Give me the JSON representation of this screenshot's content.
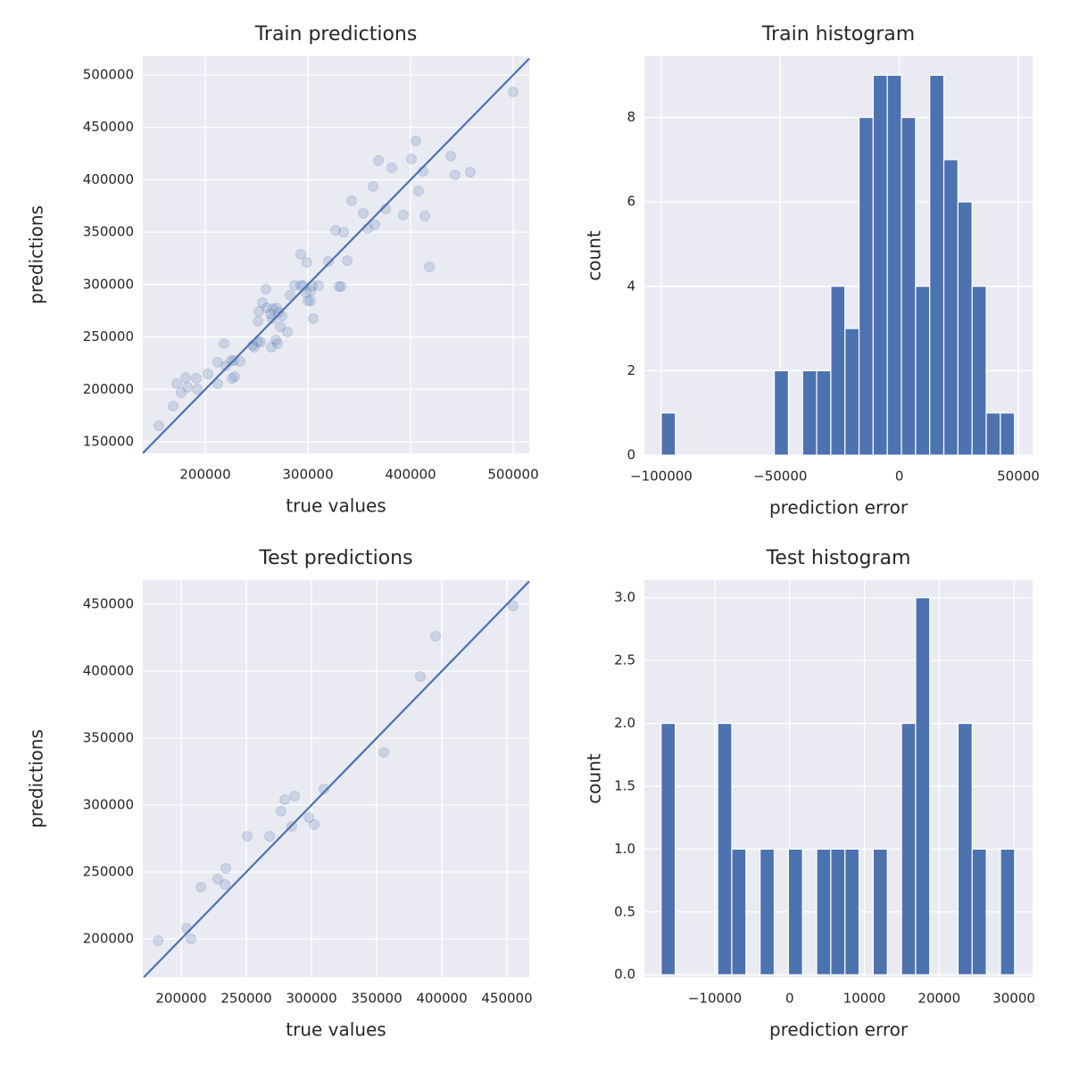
{
  "chart_data": [
    {
      "type": "scatter",
      "title": "Train predictions",
      "xlabel": "true values",
      "ylabel": "predictions",
      "color": "#4c72b0",
      "alpha": 0.2,
      "identity_line": true,
      "grid": true,
      "x": [
        154800,
        168700,
        172200,
        176500,
        180900,
        182600,
        191300,
        192200,
        202600,
        212200,
        212200,
        218300,
        220000,
        225200,
        227800,
        226100,
        228700,
        233900,
        246100,
        247800,
        251300,
        253900,
        251300,
        252200,
        255700,
        259100,
        260000,
        263500,
        264300,
        266100,
        265200,
        268700,
        269600,
        271300,
        270400,
        274800,
        273000,
        280000,
        282600,
        287000,
        293000,
        293000,
        295700,
        298300,
        299100,
        300000,
        302600,
        302600,
        304300,
        305200,
        310400,
        320000,
        327000,
        330400,
        332200,
        334800,
        338300,
        342600,
        353900,
        358300,
        363500,
        365200,
        368700,
        375700,
        381700,
        393000,
        400900,
        405200,
        407800,
        412200,
        413900,
        418300,
        439100,
        443500,
        458300,
        500000
      ],
      "y": [
        165300,
        184100,
        205400,
        196800,
        211300,
        202000,
        210500,
        200200,
        214700,
        225800,
        205400,
        243700,
        222400,
        227500,
        227500,
        210500,
        212200,
        226600,
        242000,
        240300,
        245400,
        245400,
        265000,
        274300,
        282800,
        295600,
        277700,
        271800,
        240300,
        276900,
        267500,
        247100,
        277700,
        273500,
        243700,
        270100,
        259900,
        254700,
        289700,
        299000,
        328800,
        299000,
        299000,
        292200,
        321200,
        284500,
        293900,
        284500,
        299000,
        267500,
        299000,
        322000,
        351800,
        298200,
        298200,
        350100,
        322900,
        379900,
        368000,
        353500,
        393600,
        356900,
        418200,
        372300,
        411400,
        366300,
        419900,
        437000,
        389300,
        408000,
        365400,
        316900,
        422500,
        404600,
        407200,
        483800
      ],
      "xlim": [
        139130,
        515650
      ],
      "ylim": [
        138930,
        517880
      ],
      "xticks": [
        200000,
        300000,
        400000,
        500000
      ],
      "yticks": [
        150000,
        200000,
        250000,
        300000,
        350000,
        400000,
        450000,
        500000
      ]
    },
    {
      "type": "histogram",
      "title": "Train histogram",
      "xlabel": "prediction error",
      "ylabel": "count",
      "color": "#4c72b0",
      "grid": true,
      "bins": [
        -100000,
        -94065,
        -88130,
        -82195,
        -76260,
        -70325,
        -64390,
        -58455,
        -52520,
        -46585,
        -40650,
        -34715,
        -28780,
        -22845,
        -16910,
        -10975,
        -5040,
        895,
        6830,
        12765,
        18700,
        24635,
        30570,
        36505,
        42440,
        48375
      ],
      "values": [
        1,
        0,
        0,
        0,
        0,
        0,
        0,
        0,
        2,
        0,
        2,
        2,
        4,
        3,
        8,
        9,
        9,
        8,
        4,
        9,
        7,
        6,
        4,
        1,
        1
      ],
      "xlim": [
        -107100,
        56000
      ],
      "ylim": [
        0,
        9.45
      ],
      "xticks": [
        {
          "value": -100000,
          "label": "−100000"
        },
        {
          "value": -50000,
          "label": "−50000"
        },
        0,
        50000
      ],
      "yticks": [
        0,
        2,
        4,
        6,
        8
      ]
    },
    {
      "type": "scatter",
      "title": "Test predictions",
      "xlabel": "true values",
      "ylabel": "predictions",
      "color": "#4c72b0",
      "alpha": 0.2,
      "identity_line": true,
      "grid": true,
      "x": [
        182300,
        204100,
        207500,
        215100,
        228100,
        234200,
        233600,
        250700,
        267800,
        276700,
        279500,
        284900,
        287000,
        298000,
        302100,
        309600,
        355500,
        383600,
        395200,
        454800
      ],
      "y": [
        198700,
        208000,
        200000,
        238700,
        244700,
        252700,
        240700,
        276700,
        276700,
        295300,
        304000,
        284000,
        306700,
        290700,
        285300,
        312000,
        339300,
        396000,
        426000,
        448700
      ],
      "xlim": [
        170550,
        467120
      ],
      "ylim": [
        171330,
        468000
      ],
      "xticks": [
        200000,
        250000,
        300000,
        350000,
        400000,
        450000
      ],
      "yticks": [
        200000,
        250000,
        300000,
        350000,
        400000,
        450000
      ]
    },
    {
      "type": "histogram",
      "title": "Test histogram",
      "xlabel": "prediction error",
      "ylabel": "count",
      "color": "#4c72b0",
      "grid": true,
      "bins": [
        -17190,
        -15299,
        -13408,
        -11516,
        -9625,
        -7734,
        -5843,
        -3952,
        -2060,
        -169,
        1722,
        3613,
        5504,
        7396,
        9287,
        11178,
        13069,
        14960,
        16852,
        18743,
        20634,
        22525,
        24416,
        26308,
        28199,
        30090
      ],
      "values": [
        2,
        0,
        0,
        0,
        2,
        1,
        0,
        1,
        0,
        1,
        0,
        1,
        1,
        1,
        0,
        1,
        0,
        2,
        3,
        0,
        0,
        2,
        1,
        0,
        1
      ],
      "xlim": [
        -19430,
        32500
      ],
      "ylim": [
        -0.02,
        3.14
      ],
      "xticks": [
        {
          "value": -10000,
          "label": "−10000"
        },
        0,
        10000,
        20000,
        30000
      ],
      "yticks": [
        {
          "value": 0,
          "label": "0.0"
        },
        0.5,
        {
          "value": 1,
          "label": "1.0"
        },
        1.5,
        {
          "value": 2,
          "label": "2.0"
        },
        2.5,
        {
          "value": 3,
          "label": "3.0"
        }
      ]
    }
  ]
}
